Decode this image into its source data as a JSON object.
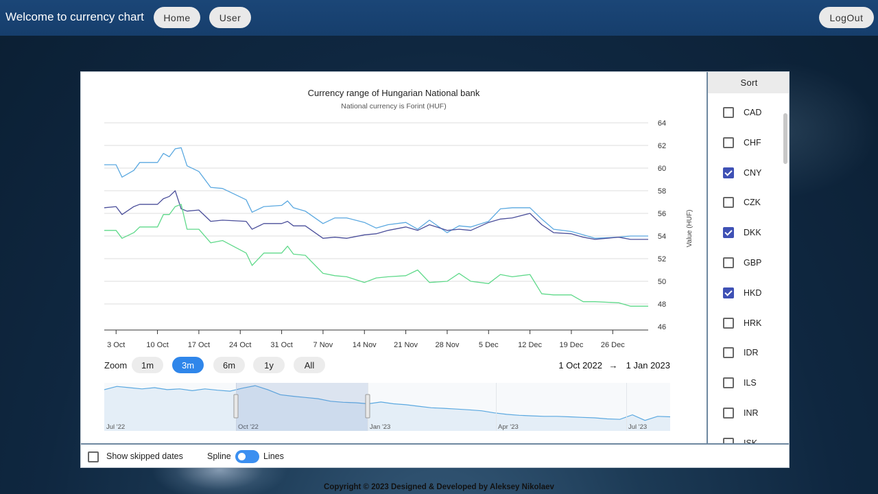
{
  "header": {
    "title": "Welcome to currency chart",
    "nav": [
      {
        "label": "Home"
      },
      {
        "label": "User"
      }
    ],
    "logout_label": "LogOut"
  },
  "chart_data": {
    "type": "line",
    "title": "Currency range of Hungarian National bank",
    "subtitle": "National currency is Forint (HUF)",
    "ylabel": "Value (HUF)",
    "ylim": [
      46,
      64
    ],
    "yticks": [
      "46",
      "48",
      "50",
      "52",
      "54",
      "56",
      "58",
      "60",
      "62",
      "64"
    ],
    "x_range": [
      "2022-10-01",
      "2023-01-01"
    ],
    "xticks": [
      {
        "date": "2022-10-03",
        "label": "3 Oct"
      },
      {
        "date": "2022-10-10",
        "label": "10 Oct"
      },
      {
        "date": "2022-10-17",
        "label": "17 Oct"
      },
      {
        "date": "2022-10-24",
        "label": "24 Oct"
      },
      {
        "date": "2022-10-31",
        "label": "31 Oct"
      },
      {
        "date": "2022-11-07",
        "label": "7 Nov"
      },
      {
        "date": "2022-11-14",
        "label": "14 Nov"
      },
      {
        "date": "2022-11-21",
        "label": "21 Nov"
      },
      {
        "date": "2022-11-28",
        "label": "28 Nov"
      },
      {
        "date": "2022-12-05",
        "label": "5 Dec"
      },
      {
        "date": "2022-12-12",
        "label": "12 Dec"
      },
      {
        "date": "2022-12-19",
        "label": "19 Dec"
      },
      {
        "date": "2022-12-26",
        "label": "26 Dec"
      }
    ],
    "grid": true,
    "legend": "none",
    "series": [
      {
        "color": "#5aa8e0",
        "x": [
          "2022-10-01",
          "2022-10-03",
          "2022-10-04",
          "2022-10-06",
          "2022-10-07",
          "2022-10-10",
          "2022-10-11",
          "2022-10-12",
          "2022-10-13",
          "2022-10-14",
          "2022-10-15",
          "2022-10-17",
          "2022-10-19",
          "2022-10-21",
          "2022-10-25",
          "2022-10-26",
          "2022-10-28",
          "2022-10-31",
          "2022-11-01",
          "2022-11-02",
          "2022-11-04",
          "2022-11-07",
          "2022-11-09",
          "2022-11-11",
          "2022-11-14",
          "2022-11-16",
          "2022-11-18",
          "2022-11-21",
          "2022-11-23",
          "2022-11-25",
          "2022-11-28",
          "2022-11-30",
          "2022-12-02",
          "2022-12-05",
          "2022-12-07",
          "2022-12-09",
          "2022-12-12",
          "2022-12-14",
          "2022-12-16",
          "2022-12-19",
          "2022-12-21",
          "2022-12-23",
          "2022-12-27",
          "2022-12-29",
          "2023-01-01"
        ],
        "y": [
          60.3,
          60.3,
          59.2,
          59.8,
          60.5,
          60.5,
          61.3,
          61.0,
          61.7,
          61.8,
          60.2,
          59.7,
          58.3,
          58.2,
          57.2,
          56.1,
          56.6,
          56.7,
          57.1,
          56.5,
          56.2,
          55.1,
          55.6,
          55.6,
          55.2,
          54.7,
          55.0,
          55.2,
          54.6,
          55.4,
          54.3,
          54.9,
          54.8,
          55.3,
          56.4,
          56.5,
          56.5,
          55.5,
          54.6,
          54.4,
          54.1,
          53.8,
          53.9,
          54.0,
          54.0
        ]
      },
      {
        "color": "#4a4e9a",
        "x": [
          "2022-10-01",
          "2022-10-03",
          "2022-10-04",
          "2022-10-06",
          "2022-10-07",
          "2022-10-10",
          "2022-10-11",
          "2022-10-12",
          "2022-10-13",
          "2022-10-14",
          "2022-10-15",
          "2022-10-17",
          "2022-10-19",
          "2022-10-21",
          "2022-10-25",
          "2022-10-26",
          "2022-10-28",
          "2022-10-31",
          "2022-11-01",
          "2022-11-02",
          "2022-11-04",
          "2022-11-07",
          "2022-11-09",
          "2022-11-11",
          "2022-11-14",
          "2022-11-16",
          "2022-11-18",
          "2022-11-21",
          "2022-11-23",
          "2022-11-25",
          "2022-11-28",
          "2022-11-30",
          "2022-12-02",
          "2022-12-05",
          "2022-12-07",
          "2022-12-09",
          "2022-12-12",
          "2022-12-14",
          "2022-12-16",
          "2022-12-19",
          "2022-12-21",
          "2022-12-23",
          "2022-12-27",
          "2022-12-29",
          "2023-01-01"
        ],
        "y": [
          56.5,
          56.6,
          55.9,
          56.6,
          56.8,
          56.8,
          57.3,
          57.5,
          58.0,
          56.4,
          56.2,
          56.3,
          55.3,
          55.4,
          55.3,
          54.6,
          55.1,
          55.1,
          55.3,
          54.9,
          54.9,
          53.8,
          53.9,
          53.8,
          54.1,
          54.2,
          54.5,
          54.8,
          54.5,
          55.0,
          54.5,
          54.6,
          54.5,
          55.2,
          55.5,
          55.6,
          56.0,
          55.0,
          54.3,
          54.2,
          53.9,
          53.7,
          53.9,
          53.7,
          53.7
        ]
      },
      {
        "color": "#5fd98a",
        "x": [
          "2022-10-01",
          "2022-10-03",
          "2022-10-04",
          "2022-10-06",
          "2022-10-07",
          "2022-10-10",
          "2022-10-11",
          "2022-10-12",
          "2022-10-13",
          "2022-10-14",
          "2022-10-15",
          "2022-10-17",
          "2022-10-19",
          "2022-10-21",
          "2022-10-25",
          "2022-10-26",
          "2022-10-28",
          "2022-10-31",
          "2022-11-01",
          "2022-11-02",
          "2022-11-04",
          "2022-11-07",
          "2022-11-09",
          "2022-11-11",
          "2022-11-14",
          "2022-11-16",
          "2022-11-18",
          "2022-11-21",
          "2022-11-23",
          "2022-11-25",
          "2022-11-28",
          "2022-11-30",
          "2022-12-02",
          "2022-12-05",
          "2022-12-07",
          "2022-12-09",
          "2022-12-12",
          "2022-12-14",
          "2022-12-16",
          "2022-12-19",
          "2022-12-21",
          "2022-12-23",
          "2022-12-27",
          "2022-12-29",
          "2023-01-01"
        ],
        "y": [
          54.5,
          54.5,
          53.8,
          54.3,
          54.8,
          54.8,
          55.9,
          55.9,
          56.6,
          56.8,
          54.6,
          54.6,
          53.4,
          53.6,
          52.5,
          51.4,
          52.5,
          52.5,
          53.1,
          52.4,
          52.3,
          50.7,
          50.5,
          50.4,
          49.9,
          50.3,
          50.4,
          50.5,
          51.0,
          49.9,
          50.0,
          50.7,
          50.0,
          49.8,
          50.6,
          50.4,
          50.6,
          48.9,
          48.8,
          48.8,
          48.2,
          48.2,
          48.1,
          47.8,
          47.8
        ]
      }
    ]
  },
  "zoom": {
    "label": "Zoom",
    "options": [
      "1m",
      "3m",
      "6m",
      "1y",
      "All"
    ],
    "selected": "3m",
    "range_from": "1 Oct 2022",
    "range_arrow": "→",
    "range_to": "1 Jan 2023"
  },
  "navigator": {
    "labels": [
      "Jul '22",
      "Oct '22",
      "Jan '23",
      "Apr '23",
      "Jul '23"
    ],
    "values": [
      60.2,
      61.5,
      61.0,
      60.5,
      61.0,
      60.2,
      60.5,
      59.8,
      60.5,
      60.0,
      59.6,
      60.8,
      61.8,
      60.2,
      58.2,
      57.6,
      57.1,
      56.6,
      55.6,
      55.2,
      55.0,
      54.6,
      55.3,
      54.6,
      54.2,
      53.6,
      53.0,
      52.8,
      52.5,
      52.2,
      51.8,
      51.0,
      50.4,
      50.0,
      49.8,
      49.6,
      49.6,
      49.4,
      49.2,
      49.0,
      48.6,
      48.4,
      50.2,
      48.0,
      49.6,
      49.4
    ]
  },
  "sidebar": {
    "sort_label": "Sort",
    "currencies": [
      {
        "code": "CAD",
        "checked": false
      },
      {
        "code": "CHF",
        "checked": false
      },
      {
        "code": "CNY",
        "checked": true
      },
      {
        "code": "CZK",
        "checked": false
      },
      {
        "code": "DKK",
        "checked": true
      },
      {
        "code": "GBP",
        "checked": false
      },
      {
        "code": "HKD",
        "checked": true
      },
      {
        "code": "HRK",
        "checked": false
      },
      {
        "code": "IDR",
        "checked": false
      },
      {
        "code": "ILS",
        "checked": false
      },
      {
        "code": "INR",
        "checked": false
      },
      {
        "code": "ISK",
        "checked": false
      }
    ]
  },
  "bottom": {
    "show_skipped_label": "Show skipped dates",
    "show_skipped_checked": false,
    "spline_label": "Spline",
    "lines_label": "Lines"
  },
  "footer": {
    "text": "Copyright © 2023 Designed & Developed by Aleksey Nikolaev"
  }
}
